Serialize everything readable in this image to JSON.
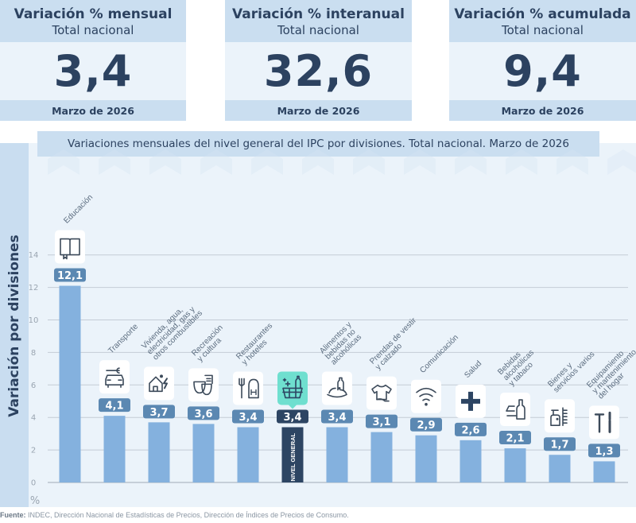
{
  "kpis": [
    {
      "title": "Variación % mensual",
      "subtitle": "Total nacional",
      "value": "3,4",
      "date": "Marzo de 2026"
    },
    {
      "title": "Variación % interanual",
      "subtitle": "Total nacional",
      "value": "32,6",
      "date": "Marzo de 2026"
    },
    {
      "title": "Variación % acumulada",
      "subtitle": "Total nacional",
      "value": "9,4",
      "date": "Marzo de 2026"
    }
  ],
  "source": {
    "label": "Fuente:",
    "text": "INDEC, Dirección Nacional de Estadísticas de Precios, Dirección de Índices de Precios de Consumo."
  },
  "colors": {
    "bar": "#84b1de",
    "highlight_bar": "#2d4563",
    "value_badge": "#5b88b2",
    "highlight_badge": "#2d4563",
    "highlight_icon_bg": "#6fdfcf",
    "text": "#2c4260"
  },
  "chart_data": {
    "type": "bar",
    "title": "Variaciones mensuales del nivel general del IPC por divisiones. Total nacional. Marzo de 2026",
    "xlabel": "",
    "ylabel": "Variación por divisiones",
    "yunit": "%",
    "ylim": [
      0,
      14
    ],
    "yticks": [
      0,
      2,
      4,
      6,
      8,
      10,
      12,
      14
    ],
    "grid": true,
    "categories": [
      "Educación",
      "Transporte",
      "Vivienda, agua, electricidad, gas y otros combustibles",
      "Recreación y cultura",
      "Restaurantes y hoteles",
      "Nivel general",
      "Alimentos y bebidas no alcohólicas",
      "Prendas de vestir y calzado",
      "Comunicación",
      "Salud",
      "Bebidas alcohólicas y tabaco",
      "Bienes y servicios varios",
      "Equipamiento y mantenimiento del hogar"
    ],
    "category_label_lines": [
      [
        "Educación"
      ],
      [
        "Transporte"
      ],
      [
        "Vivienda, agua,",
        "electricidad, gas y",
        "otros combustibles"
      ],
      [
        "Recreación",
        "y cultura"
      ],
      [
        "Restaurantes",
        "y hoteles"
      ],
      [],
      [
        "Alimentos y",
        "bebidas no",
        "alcohólicas"
      ],
      [
        "Prendas de vestir",
        "y calzado"
      ],
      [
        "Comunicación"
      ],
      [
        "Salud"
      ],
      [
        "Bebidas",
        "alcohólicas",
        "y tabaco"
      ],
      [
        "Bienes y",
        "servicios varios"
      ],
      [
        "Equipamiento",
        "y mantenimiento",
        "del hogar"
      ]
    ],
    "values": [
      12.1,
      4.1,
      3.7,
      3.6,
      3.4,
      3.4,
      3.4,
      3.1,
      2.9,
      2.6,
      2.1,
      1.7,
      1.3
    ],
    "value_labels": [
      "12,1",
      "4,1",
      "3,7",
      "3,6",
      "3,4",
      "3,4",
      "3,4",
      "3,1",
      "2,9",
      "2,6",
      "2,1",
      "1,7",
      "1,3"
    ],
    "icons": [
      "book-icon",
      "car-wrench-icon",
      "house-utilities-icon",
      "theater-masks-icon",
      "fork-hotel-icon",
      "basket-icon",
      "food-bottle-icon",
      "tshirt-shoe-icon",
      "wifi-icon",
      "health-cross-icon",
      "bottle-glass-icon",
      "hygiene-comb-icon",
      "tools-icon"
    ],
    "highlight_index": 5,
    "highlight_bar_label": "NIVEL GENERAL"
  }
}
